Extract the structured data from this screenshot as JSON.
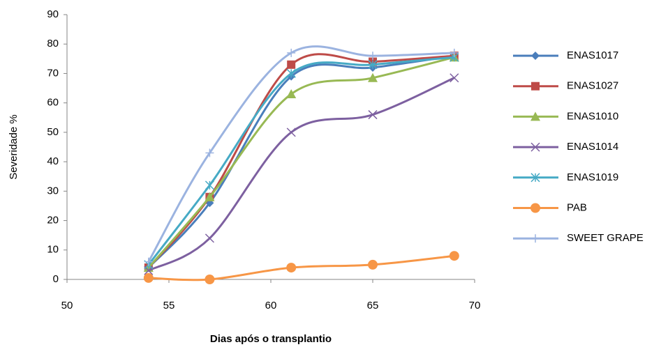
{
  "chart_data": {
    "type": "line",
    "smooth": true,
    "x_label": "Dias após o transplantio",
    "y_label": "Severidade %",
    "x": [
      54,
      57,
      61,
      65,
      69
    ],
    "xlim": [
      50,
      70
    ],
    "xticks": [
      50,
      55,
      60,
      65,
      70
    ],
    "ylim": [
      0,
      90
    ],
    "yticks": [
      0,
      10,
      20,
      30,
      40,
      50,
      60,
      70,
      80,
      90
    ],
    "grid": false,
    "legend": "right",
    "series": [
      {
        "name": "ENAS1017",
        "color": "#4a7ebb",
        "marker": "diamond",
        "values": [
          4,
          26,
          69,
          72,
          76
        ]
      },
      {
        "name": "ENAS1027",
        "color": "#be4b48",
        "marker": "square",
        "values": [
          4,
          28,
          73,
          74,
          76
        ]
      },
      {
        "name": "ENAS1010",
        "color": "#98b954",
        "marker": "triangle",
        "values": [
          4,
          28,
          63,
          68.5,
          75.5
        ]
      },
      {
        "name": "ENAS1014",
        "color": "#7d60a0",
        "marker": "x",
        "values": [
          3,
          14,
          50,
          56,
          68.5
        ]
      },
      {
        "name": "ENAS1019",
        "color": "#46aac5",
        "marker": "asterisk",
        "values": [
          5,
          32,
          70,
          73,
          75.5
        ]
      },
      {
        "name": "PAB",
        "color": "#f79646",
        "marker": "circle",
        "values": [
          0.5,
          0,
          4,
          5,
          8
        ]
      },
      {
        "name": "SWEET GRAPE",
        "color": "#9bb3e0",
        "marker": "plus",
        "values": [
          6,
          43,
          77,
          76,
          77
        ]
      }
    ]
  }
}
